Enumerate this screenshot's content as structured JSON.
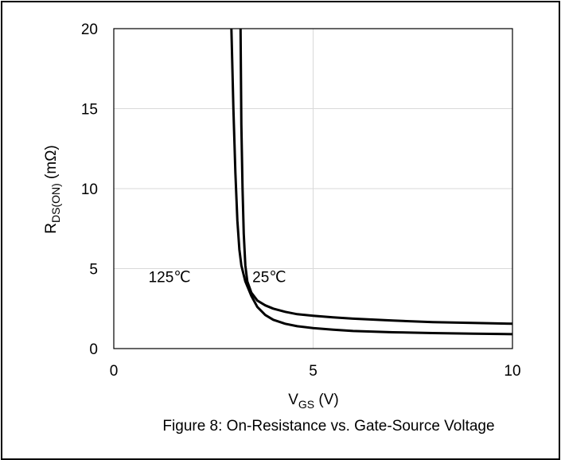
{
  "chart_data": {
    "type": "line",
    "title": "",
    "caption": "Figure 8: On-Resistance vs. Gate-Source Voltage",
    "xlabel_main": "V",
    "xlabel_sub": "GS",
    "xlabel_unit": " (V)",
    "ylabel_main": "R",
    "ylabel_sub": "DS(ON)",
    "ylabel_unit": " (mΩ)",
    "xlim": [
      0,
      10
    ],
    "ylim": [
      0,
      20
    ],
    "xticks": [
      0,
      5,
      10
    ],
    "yticks": [
      0,
      5,
      10,
      15,
      20
    ],
    "grid": true,
    "series": [
      {
        "name": "125℃",
        "color": "#000000",
        "x": [
          2.95,
          3.0,
          3.05,
          3.1,
          3.15,
          3.2,
          3.3,
          3.45,
          3.6,
          3.8,
          4.0,
          4.3,
          4.6,
          5.0,
          5.5,
          6.0,
          7.0,
          8.0,
          9.0,
          10.0
        ],
        "y": [
          20,
          15,
          11,
          8,
          6.2,
          5.2,
          4.2,
          3.3,
          2.6,
          2.1,
          1.8,
          1.55,
          1.4,
          1.28,
          1.18,
          1.1,
          1.02,
          0.97,
          0.93,
          0.9
        ]
      },
      {
        "name": "25℃",
        "color": "#000000",
        "x": [
          3.18,
          3.2,
          3.23,
          3.26,
          3.3,
          3.35,
          3.45,
          3.6,
          3.8,
          4.0,
          4.3,
          4.6,
          5.0,
          5.5,
          6.0,
          7.0,
          8.0,
          9.0,
          10.0
        ],
        "y": [
          20,
          14,
          10,
          7.2,
          5.2,
          4.2,
          3.5,
          3.0,
          2.7,
          2.5,
          2.3,
          2.15,
          2.05,
          1.95,
          1.87,
          1.75,
          1.65,
          1.6,
          1.55
        ]
      }
    ],
    "annotations": [
      {
        "text": "125℃",
        "x": 1.4,
        "y": 4.5
      },
      {
        "text": "25℃",
        "x": 3.9,
        "y": 4.5
      }
    ]
  }
}
